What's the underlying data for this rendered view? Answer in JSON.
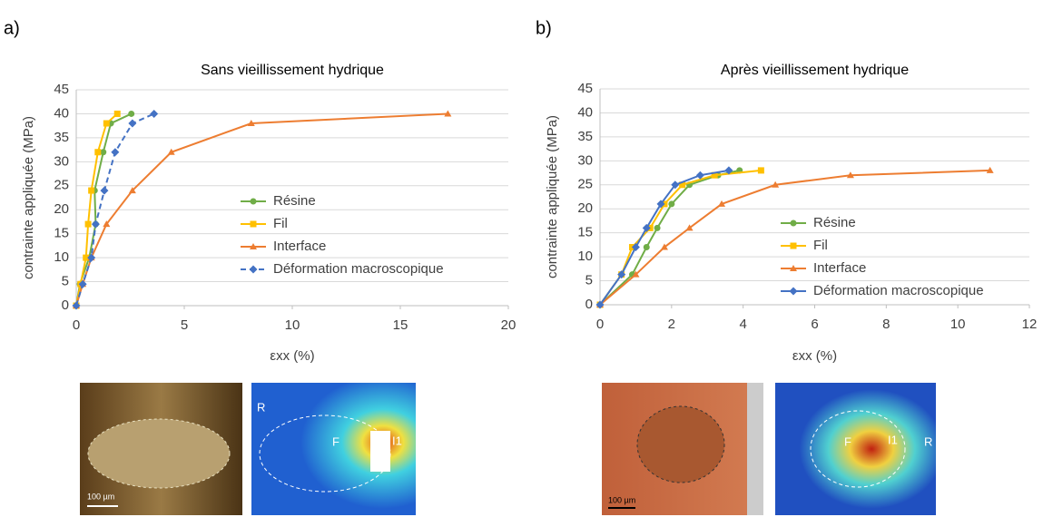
{
  "panel_labels": [
    "a)",
    "b)"
  ],
  "images": [
    {
      "scale": "100 µm",
      "labels": [
        "R",
        "F",
        "I1"
      ]
    },
    {
      "scale": "100 µm",
      "labels": [
        "F",
        "I1",
        "R"
      ]
    }
  ],
  "chart_data": [
    {
      "type": "line",
      "title": "Sans vieillissement hydrique",
      "xlabel": "εxx (%)",
      "ylabel": "contrainte appliquée (MPa)",
      "xlim": [
        0,
        20
      ],
      "xticks": [
        0,
        5,
        10,
        15,
        20
      ],
      "ylim": [
        0,
        45
      ],
      "yticks": [
        0,
        5,
        10,
        15,
        20,
        25,
        30,
        35,
        40,
        45
      ],
      "legend": "center-right",
      "series": [
        {
          "name": "Résine",
          "color": "#70ad47",
          "marker": "circle",
          "dashed": false,
          "x": [
            0,
            0.17,
            0.6,
            0.9,
            0.85,
            1.25,
            1.6,
            2.55
          ],
          "values": [
            0,
            4.5,
            10,
            17,
            24,
            32,
            38,
            40
          ]
        },
        {
          "name": "Fil",
          "color": "#ffc000",
          "marker": "square",
          "dashed": false,
          "x": [
            0,
            0.2,
            0.45,
            0.55,
            0.7,
            1.0,
            1.4,
            1.9
          ],
          "values": [
            0,
            4.5,
            10,
            17,
            24,
            32,
            38,
            40
          ]
        },
        {
          "name": "Interface",
          "color": "#ed7d31",
          "marker": "triangle",
          "dashed": false,
          "x": [
            0,
            0.3,
            0.7,
            1.4,
            2.6,
            4.4,
            8.1,
            17.2
          ],
          "values": [
            0,
            4.5,
            10,
            17,
            24,
            32,
            38,
            40
          ]
        },
        {
          "name": "Déformation macroscopique",
          "color": "#4472c4",
          "marker": "diamond",
          "dashed": true,
          "x": [
            0,
            0.3,
            0.7,
            0.9,
            1.3,
            1.8,
            2.6,
            3.6
          ],
          "values": [
            0,
            4.5,
            10,
            17,
            24,
            32,
            38,
            40
          ]
        }
      ]
    },
    {
      "type": "line",
      "title": "Après vieillissement hydrique",
      "xlabel": "εxx (%)",
      "ylabel": "contrainte appliquée (MPa)",
      "xlim": [
        0,
        12
      ],
      "xticks": [
        0,
        2,
        4,
        6,
        8,
        10,
        12
      ],
      "ylim": [
        0,
        45
      ],
      "yticks": [
        0,
        5,
        10,
        15,
        20,
        25,
        30,
        35,
        40,
        45
      ],
      "legend": "lower-right",
      "series": [
        {
          "name": "Résine",
          "color": "#70ad47",
          "marker": "circle",
          "dashed": false,
          "x": [
            0,
            0.9,
            1.3,
            1.6,
            2.0,
            2.5,
            3.3,
            3.9
          ],
          "values": [
            0,
            6.3,
            12,
            16,
            21,
            25,
            27,
            28
          ]
        },
        {
          "name": "Fil",
          "color": "#ffc000",
          "marker": "square",
          "dashed": false,
          "x": [
            0,
            0.6,
            0.9,
            1.4,
            1.8,
            2.3,
            3.2,
            4.5
          ],
          "values": [
            0,
            6.3,
            12,
            16,
            21,
            25,
            27,
            28
          ]
        },
        {
          "name": "Interface",
          "color": "#ed7d31",
          "marker": "triangle",
          "dashed": false,
          "x": [
            0,
            1.0,
            1.8,
            2.5,
            3.4,
            4.9,
            7.0,
            10.9
          ],
          "values": [
            0,
            6.3,
            12,
            16,
            21,
            25,
            27,
            28
          ]
        },
        {
          "name": "Déformation macroscopique",
          "color": "#4472c4",
          "marker": "diamond",
          "dashed": false,
          "x": [
            0,
            0.6,
            1.0,
            1.3,
            1.7,
            2.1,
            2.8,
            3.6
          ],
          "values": [
            0,
            6.3,
            12,
            16,
            21,
            25,
            27,
            28
          ]
        }
      ]
    }
  ]
}
